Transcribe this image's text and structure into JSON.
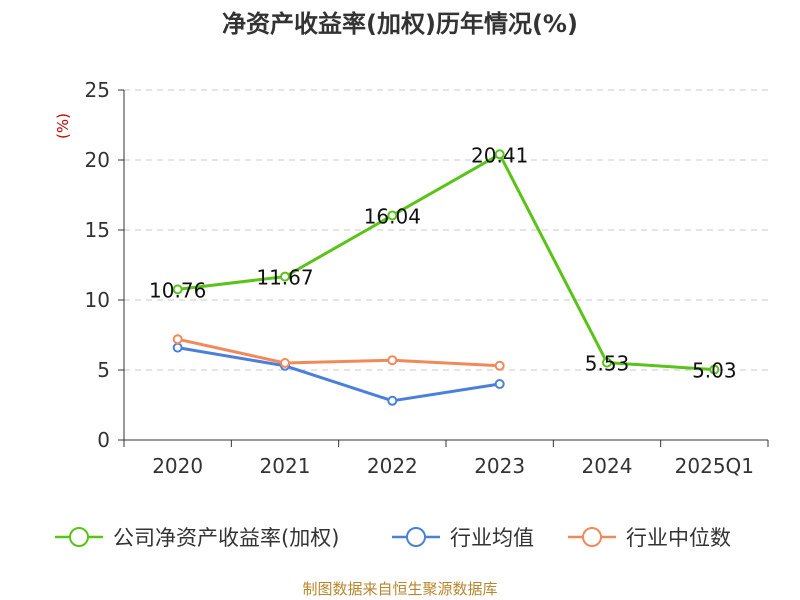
{
  "title": "净资产收益率(加权)历年情况(%)",
  "source": "制图数据来自恒生聚源数据库",
  "colors": {
    "series1": "#5ac318",
    "series2": "#4a7fdc",
    "series3": "#f2895a",
    "unit": "#cc0000",
    "source": "#b8862d"
  },
  "chart_data": {
    "type": "line",
    "title": "净资产收益率(加权)历年情况(%)",
    "ylabel": "(%)",
    "xlabel": "",
    "categories": [
      "2020",
      "2021",
      "2022",
      "2023",
      "2024",
      "2025Q1"
    ],
    "ylim": [
      0,
      25
    ],
    "yticks": [
      "0",
      "5",
      "10",
      "15",
      "20",
      "25"
    ],
    "grid": true,
    "legend": "bottom",
    "series": [
      {
        "name": "公司净资产收益率(加权)",
        "values": [
          10.76,
          11.67,
          16.04,
          20.41,
          5.53,
          5.03
        ],
        "labels": [
          "10.76",
          "11.67",
          "16.04",
          "20.41",
          "5.53",
          "5.03"
        ],
        "color": "#5ac318"
      },
      {
        "name": "行业均值",
        "values": [
          6.6,
          5.3,
          2.8,
          4.0,
          null,
          null
        ],
        "color": "#4a7fdc"
      },
      {
        "name": "行业中位数",
        "values": [
          7.2,
          5.5,
          5.7,
          5.3,
          null,
          null
        ],
        "color": "#f2895a"
      }
    ]
  }
}
